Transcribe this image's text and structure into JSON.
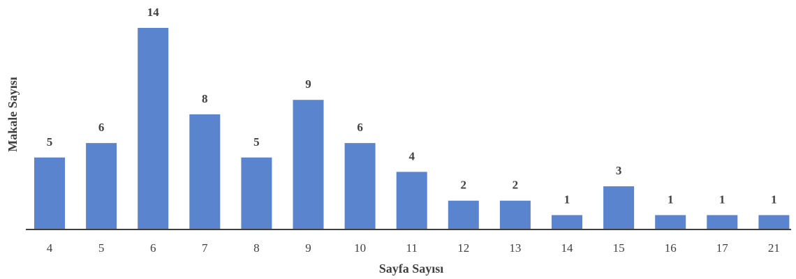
{
  "chart_data": {
    "type": "bar",
    "title": "",
    "xlabel": "Sayfa Sayısı",
    "ylabel": "Makale Sayısı",
    "categories": [
      "4",
      "5",
      "6",
      "7",
      "8",
      "9",
      "10",
      "11",
      "12",
      "13",
      "14",
      "15",
      "16",
      "17",
      "21"
    ],
    "values": [
      5,
      6,
      14,
      8,
      5,
      9,
      6,
      4,
      2,
      2,
      1,
      3,
      1,
      1,
      1
    ],
    "value_labels": [
      "5",
      "6",
      "14",
      "8",
      "5",
      "9",
      "6",
      "4",
      "2",
      "2",
      "1",
      "3",
      "1",
      "1",
      "1"
    ],
    "ylim": [
      0,
      14
    ],
    "grid": false,
    "legend": "none",
    "colors": {
      "bar": "#5b84cf",
      "text": "#404040",
      "axis": "#404040"
    }
  }
}
